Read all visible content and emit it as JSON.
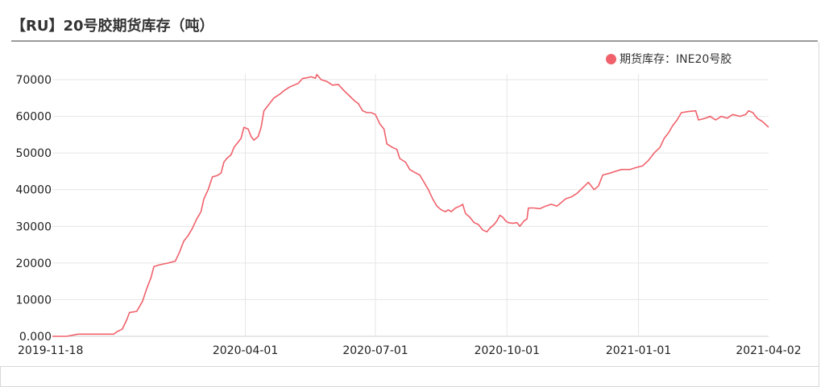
{
  "page": {
    "title": "【RU】20号胶期货库存（吨）"
  },
  "colors": {
    "series": "#f0616b",
    "grid": "#e6e6e6",
    "axis": "#cfcfcf",
    "text": "#222222"
  },
  "chart_data": {
    "type": "line",
    "legend_position": "top-right",
    "grid": true,
    "ylim": [
      0,
      70000
    ],
    "yticks": [
      0,
      10000,
      20000,
      30000,
      40000,
      50000,
      60000,
      70000
    ],
    "ytick_labels": [
      "0.000",
      "10000",
      "20000",
      "30000",
      "40000",
      "50000",
      "60000",
      "70000"
    ],
    "xlim": [
      "2019-11-18",
      "2021-04-02"
    ],
    "xticks": [
      "2019-11-18",
      "2020-04-01",
      "2020-07-01",
      "2020-10-01",
      "2021-01-01",
      "2021-04-02"
    ],
    "series": [
      {
        "name": "期货库存：INE20号胶",
        "points": [
          [
            "2019-11-18",
            0
          ],
          [
            "2019-11-28",
            0
          ],
          [
            "2019-12-06",
            600
          ],
          [
            "2019-12-17",
            600
          ],
          [
            "2019-12-31",
            600
          ],
          [
            "2020-01-02",
            1200
          ],
          [
            "2020-01-06",
            2000
          ],
          [
            "2020-01-09",
            4500
          ],
          [
            "2020-01-11",
            6500
          ],
          [
            "2020-01-16",
            6800
          ],
          [
            "2020-01-20",
            9500
          ],
          [
            "2020-01-23",
            13000
          ],
          [
            "2020-01-26",
            16000
          ],
          [
            "2020-01-28",
            19000
          ],
          [
            "2020-02-01",
            19500
          ],
          [
            "2020-02-07",
            20000
          ],
          [
            "2020-02-12",
            20500
          ],
          [
            "2020-02-15",
            23000
          ],
          [
            "2020-02-18",
            26000
          ],
          [
            "2020-02-21",
            27500
          ],
          [
            "2020-02-24",
            29500
          ],
          [
            "2020-02-27",
            32000
          ],
          [
            "2020-03-01",
            34000
          ],
          [
            "2020-03-03",
            37500
          ],
          [
            "2020-03-06",
            40000
          ],
          [
            "2020-03-09",
            43500
          ],
          [
            "2020-03-12",
            43800
          ],
          [
            "2020-03-15",
            44500
          ],
          [
            "2020-03-17",
            47500
          ],
          [
            "2020-03-19",
            48500
          ],
          [
            "2020-03-22",
            49500
          ],
          [
            "2020-03-24",
            51500
          ],
          [
            "2020-03-27",
            53000
          ],
          [
            "2020-03-29",
            54000
          ],
          [
            "2020-03-31",
            57000
          ],
          [
            "2020-04-03",
            56500
          ],
          [
            "2020-04-05",
            54500
          ],
          [
            "2020-04-07",
            53500
          ],
          [
            "2020-04-10",
            54500
          ],
          [
            "2020-04-12",
            57000
          ],
          [
            "2020-04-14",
            61500
          ],
          [
            "2020-04-18",
            63500
          ],
          [
            "2020-04-21",
            65000
          ],
          [
            "2020-04-25",
            66000
          ],
          [
            "2020-04-28",
            67000
          ],
          [
            "2020-05-02",
            68000
          ],
          [
            "2020-05-05",
            68500
          ],
          [
            "2020-05-08",
            69000
          ],
          [
            "2020-05-11",
            70300
          ],
          [
            "2020-05-14",
            70500
          ],
          [
            "2020-05-17",
            70800
          ],
          [
            "2020-05-20",
            70400
          ],
          [
            "2020-05-21",
            71400
          ],
          [
            "2020-05-24",
            70000
          ],
          [
            "2020-05-28",
            69500
          ],
          [
            "2020-06-01",
            68500
          ],
          [
            "2020-06-05",
            68700
          ],
          [
            "2020-06-09",
            67000
          ],
          [
            "2020-06-13",
            65500
          ],
          [
            "2020-06-17",
            64000
          ],
          [
            "2020-06-19",
            63500
          ],
          [
            "2020-06-22",
            61500
          ],
          [
            "2020-06-25",
            61000
          ],
          [
            "2020-06-28",
            61000
          ],
          [
            "2020-07-01",
            60500
          ],
          [
            "2020-07-04",
            58000
          ],
          [
            "2020-07-07",
            56500
          ],
          [
            "2020-07-09",
            52500
          ],
          [
            "2020-07-13",
            51500
          ],
          [
            "2020-07-16",
            51000
          ],
          [
            "2020-07-18",
            48500
          ],
          [
            "2020-07-22",
            47500
          ],
          [
            "2020-07-25",
            45500
          ],
          [
            "2020-07-28",
            44800
          ],
          [
            "2020-08-01",
            44000
          ],
          [
            "2020-08-04",
            42000
          ],
          [
            "2020-08-07",
            40000
          ],
          [
            "2020-08-10",
            37500
          ],
          [
            "2020-08-13",
            35500
          ],
          [
            "2020-08-16",
            34500
          ],
          [
            "2020-08-19",
            34000
          ],
          [
            "2020-08-21",
            34500
          ],
          [
            "2020-08-23",
            34000
          ],
          [
            "2020-08-26",
            35000
          ],
          [
            "2020-08-29",
            35500
          ],
          [
            "2020-08-31",
            36000
          ],
          [
            "2020-09-02",
            33500
          ],
          [
            "2020-09-05",
            32500
          ],
          [
            "2020-09-08",
            31000
          ],
          [
            "2020-09-11",
            30500
          ],
          [
            "2020-09-14",
            29000
          ],
          [
            "2020-09-17",
            28500
          ],
          [
            "2020-09-19",
            29500
          ],
          [
            "2020-09-22",
            30500
          ],
          [
            "2020-09-24",
            31500
          ],
          [
            "2020-09-26",
            33000
          ],
          [
            "2020-09-28",
            32500
          ],
          [
            "2020-09-30",
            31500
          ],
          [
            "2020-10-02",
            31000
          ],
          [
            "2020-10-05",
            30800
          ],
          [
            "2020-10-08",
            31000
          ],
          [
            "2020-10-10",
            30000
          ],
          [
            "2020-10-13",
            31500
          ],
          [
            "2020-10-15",
            32000
          ],
          [
            "2020-10-16",
            35000
          ],
          [
            "2020-10-20",
            35000
          ],
          [
            "2020-10-24",
            34800
          ],
          [
            "2020-10-28",
            35500
          ],
          [
            "2020-11-01",
            36000
          ],
          [
            "2020-11-05",
            35500
          ],
          [
            "2020-11-08",
            36500
          ],
          [
            "2020-11-11",
            37500
          ],
          [
            "2020-11-15",
            38000
          ],
          [
            "2020-11-19",
            39000
          ],
          [
            "2020-11-23",
            40500
          ],
          [
            "2020-11-27",
            42000
          ],
          [
            "2020-12-01",
            40000
          ],
          [
            "2020-12-04",
            41000
          ],
          [
            "2020-12-07",
            44000
          ],
          [
            "2020-12-12",
            44500
          ],
          [
            "2020-12-16",
            45000
          ],
          [
            "2020-12-20",
            45500
          ],
          [
            "2020-12-26",
            45500
          ],
          [
            "2020-12-30",
            46000
          ],
          [
            "2021-01-04",
            46500
          ],
          [
            "2021-01-08",
            48000
          ],
          [
            "2021-01-12",
            50000
          ],
          [
            "2021-01-16",
            51500
          ],
          [
            "2021-01-19",
            54000
          ],
          [
            "2021-01-22",
            55500
          ],
          [
            "2021-01-25",
            57500
          ],
          [
            "2021-01-28",
            59000
          ],
          [
            "2021-01-31",
            61000
          ],
          [
            "2021-02-05",
            61300
          ],
          [
            "2021-02-10",
            61500
          ],
          [
            "2021-02-12",
            59000
          ],
          [
            "2021-02-17",
            59500
          ],
          [
            "2021-02-20",
            60000
          ],
          [
            "2021-02-24",
            59000
          ],
          [
            "2021-02-28",
            60000
          ],
          [
            "2021-03-04",
            59500
          ],
          [
            "2021-03-08",
            60500
          ],
          [
            "2021-03-13",
            60000
          ],
          [
            "2021-03-17",
            60500
          ],
          [
            "2021-03-19",
            61500
          ],
          [
            "2021-03-22",
            61000
          ],
          [
            "2021-03-25",
            59500
          ],
          [
            "2021-03-29",
            58500
          ],
          [
            "2021-04-02",
            57000
          ]
        ]
      }
    ]
  }
}
